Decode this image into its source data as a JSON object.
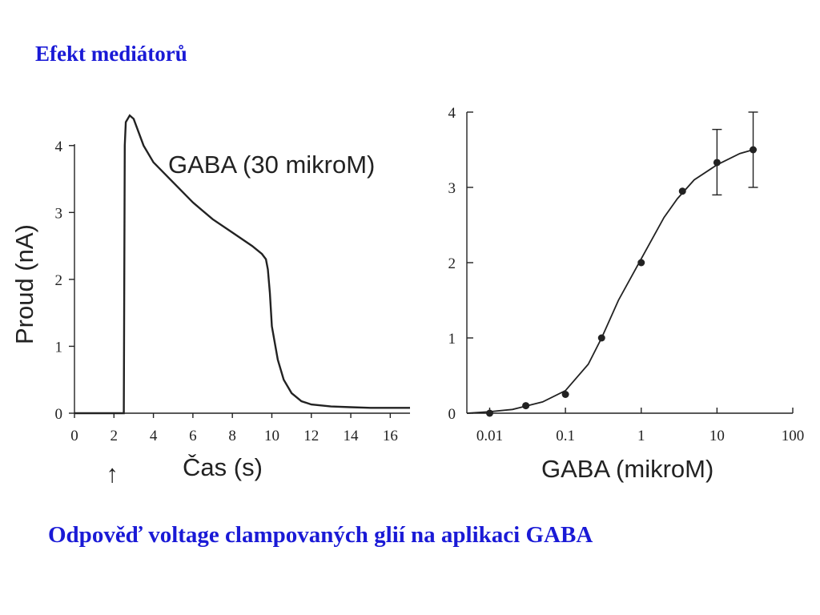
{
  "title": "Efekt mediátorů",
  "caption": "Odpověď voltage clampovaných glií na aplikaci GABA",
  "chart_data": [
    {
      "type": "line",
      "annotation": "GABA (30 mikroM)",
      "xlabel": "Čas (s)",
      "ylabel": "Proud (nA)",
      "xlim": [
        0,
        17
      ],
      "ylim": [
        0,
        4.5
      ],
      "x_ticks": [
        "0",
        "2",
        "4",
        "6",
        "8",
        "10",
        "12",
        "14",
        "16"
      ],
      "y_ticks": [
        "0",
        "1",
        "2",
        "3",
        "4"
      ],
      "application_marker": "↑",
      "application_time": 2,
      "series": [
        {
          "x": [
            0,
            2.5,
            2.55,
            2.6,
            2.8,
            3.0,
            3.5,
            4.0,
            5.0,
            6.0,
            7.0,
            8.0,
            9.0,
            9.5,
            9.7,
            9.8,
            9.9,
            10.0,
            10.3,
            10.6,
            11.0,
            11.5,
            12.0,
            13.0,
            14.0,
            15.0,
            16.0,
            17.0
          ],
          "y": [
            0,
            0,
            4.0,
            4.35,
            4.45,
            4.4,
            4.0,
            3.75,
            3.45,
            3.15,
            2.9,
            2.7,
            2.5,
            2.38,
            2.3,
            2.15,
            1.8,
            1.3,
            0.8,
            0.5,
            0.3,
            0.18,
            0.13,
            0.1,
            0.09,
            0.08,
            0.08,
            0.08
          ]
        }
      ]
    },
    {
      "type": "scatter",
      "xlabel": "GABA (mikroM)",
      "x_scale": "log",
      "xlim": [
        0.005,
        100
      ],
      "ylim": [
        0,
        4
      ],
      "x_ticks": [
        "0.01",
        "0.1",
        "1",
        "10",
        "100"
      ],
      "y_ticks": [
        "0",
        "1",
        "2",
        "3",
        "4"
      ],
      "points": {
        "x": [
          0.01,
          0.03,
          0.1,
          0.3,
          1,
          3.5,
          10,
          30
        ],
        "y": [
          0,
          0.1,
          0.25,
          1.0,
          2.0,
          2.95,
          3.33,
          3.5
        ]
      },
      "error_bars": [
        {
          "x": 10,
          "low": 2.9,
          "high": 3.77
        },
        {
          "x": 30,
          "low": 3.0,
          "high": 4.0
        }
      ],
      "fit_curve": {
        "x": [
          0.005,
          0.01,
          0.02,
          0.05,
          0.1,
          0.2,
          0.3,
          0.5,
          1,
          2,
          3,
          5,
          10,
          20,
          30
        ],
        "y": [
          0,
          0.02,
          0.05,
          0.15,
          0.3,
          0.65,
          1.0,
          1.5,
          2.05,
          2.6,
          2.85,
          3.1,
          3.3,
          3.45,
          3.5
        ]
      }
    }
  ]
}
